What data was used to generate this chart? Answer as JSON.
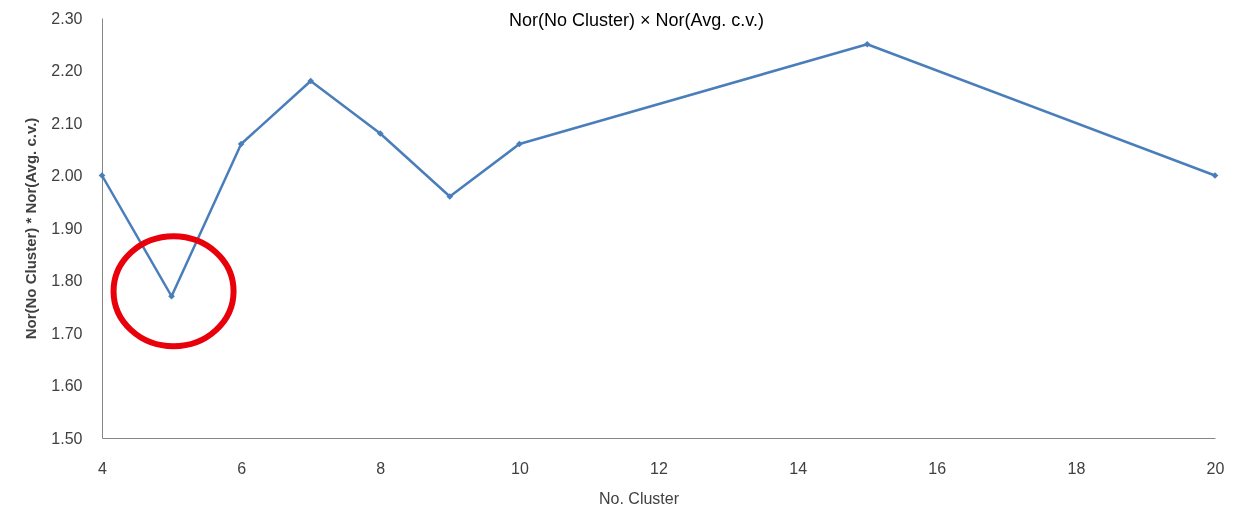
{
  "chart_data": {
    "type": "line",
    "title": "Nor(No Cluster) × Nor(Avg. c.v.)",
    "xlabel": "No. Cluster",
    "ylabel": "Nor(No Cluster) * Nor(Avg. c.v.)",
    "x": [
      4,
      5,
      6,
      7,
      8,
      9,
      10,
      15,
      20
    ],
    "series": [
      {
        "color": "#4a7ebb",
        "values": [
          2.0,
          1.77,
          2.06,
          2.18,
          2.08,
          1.96,
          2.06,
          2.25,
          2.0
        ]
      }
    ],
    "xlim": [
      4,
      20
    ],
    "xticks": [
      4,
      6,
      8,
      10,
      12,
      14,
      16,
      18,
      20
    ],
    "ylim": [
      1.5,
      2.3
    ],
    "yticks": [
      {
        "value": 1.5,
        "label": "1.50"
      },
      {
        "value": 1.6,
        "label": "1.60"
      },
      {
        "value": 1.7,
        "label": "1.70"
      },
      {
        "value": 1.8,
        "label": "1.80"
      },
      {
        "value": 1.9,
        "label": "1.90"
      },
      {
        "value": 2.0,
        "label": "2.00"
      },
      {
        "value": 2.1,
        "label": "2.10"
      },
      {
        "value": 2.2,
        "label": "2.20"
      },
      {
        "value": 2.3,
        "label": "2.30"
      }
    ],
    "marker": "diamond",
    "line_style": "solid"
  }
}
